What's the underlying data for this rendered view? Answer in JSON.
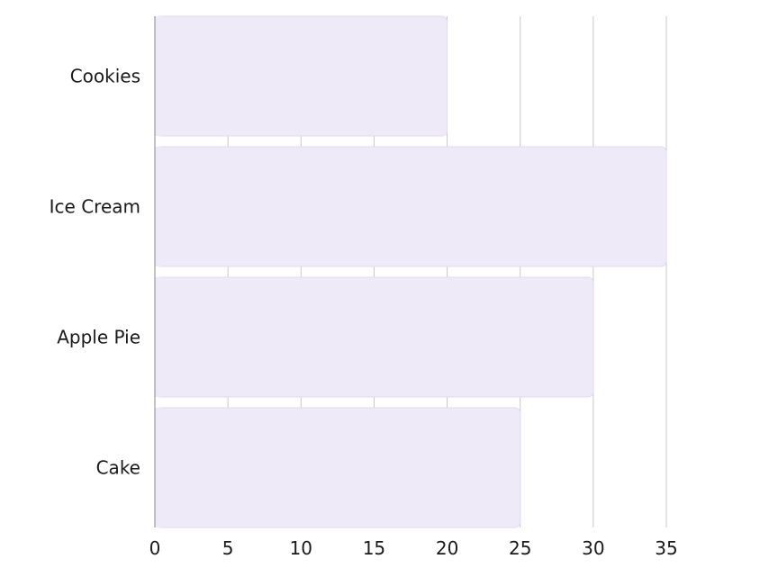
{
  "chart_data": {
    "type": "bar",
    "orientation": "horizontal",
    "categories": [
      "Cookies",
      "Ice Cream",
      "Apple Pie",
      "Cake"
    ],
    "values": [
      20,
      35,
      30,
      25
    ],
    "title": "",
    "xlabel": "",
    "ylabel": "",
    "xlim": [
      0,
      35
    ],
    "xticks": [
      0,
      5,
      10,
      15,
      20,
      25,
      30,
      35
    ],
    "grid": "vertical",
    "legend": "none",
    "bar_color": "#efeaf7",
    "bar_stroke": "#e2dbef"
  }
}
